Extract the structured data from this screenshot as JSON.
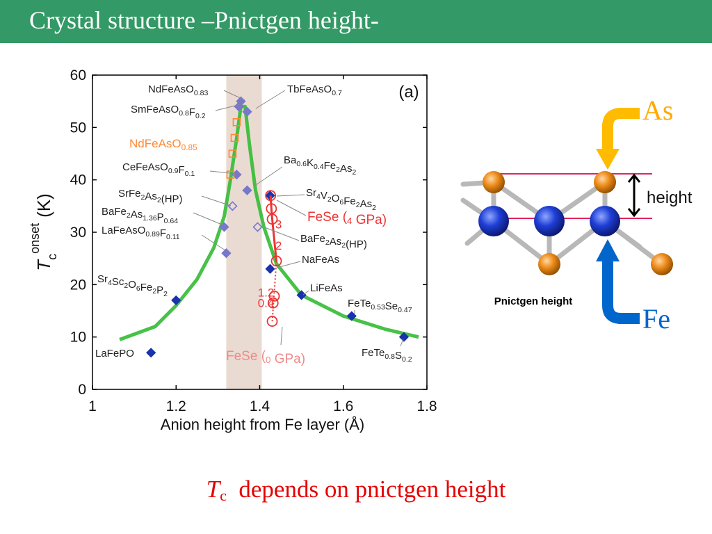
{
  "slide": {
    "title": "Crystal structure –Pnictgen height-",
    "caption_t": "T",
    "caption_sub": "c",
    "caption_rest": "depends on pnictgen height"
  },
  "diagram": {
    "label_as": "As",
    "label_fe": "Fe",
    "label_height": "height",
    "label_caption": "Pnictgen height"
  },
  "colors": {
    "header_green": "#339966",
    "caption_red": "#e60000",
    "curve_green": "#33bb33",
    "diamond_blue": "#1a33aa",
    "diamond_light": "#7777cc",
    "orange": "#ff8833",
    "fese_red": "#ee3333",
    "band": "#eadbd2",
    "as_arrow": "#ffbb00",
    "fe_arrow": "#0066cc"
  },
  "chart_data": {
    "type": "scatter",
    "panel_label": "(a)",
    "xlabel": "Anion height from Fe layer (Å)",
    "ylabel_main": "T",
    "ylabel_sub": "c",
    "ylabel_sup": "onset",
    "ylabel_unit": "(K)",
    "xlim": [
      1,
      1.8
    ],
    "ylim": [
      0,
      60
    ],
    "xticks": [
      1,
      1.2,
      1.4,
      1.6,
      1.8
    ],
    "xtick_labels": [
      "1",
      "1.2",
      "1.4",
      "1.6",
      "1.8"
    ],
    "yticks": [
      0,
      10,
      20,
      30,
      40,
      50,
      60
    ],
    "ytick_labels": [
      "0",
      "10",
      "20",
      "30",
      "40",
      "50",
      "60"
    ],
    "band": [
      1.32,
      1.405
    ],
    "curve": [
      [
        1.065,
        9.5
      ],
      [
        1.15,
        12
      ],
      [
        1.2,
        16
      ],
      [
        1.25,
        21
      ],
      [
        1.29,
        27
      ],
      [
        1.315,
        33
      ],
      [
        1.33,
        40
      ],
      [
        1.345,
        48
      ],
      [
        1.355,
        54
      ],
      [
        1.365,
        54
      ],
      [
        1.375,
        47
      ],
      [
        1.39,
        38
      ],
      [
        1.41,
        31
      ],
      [
        1.44,
        24
      ],
      [
        1.5,
        18
      ],
      [
        1.6,
        14
      ],
      [
        1.7,
        11.5
      ],
      [
        1.78,
        10
      ]
    ],
    "compounds": [
      {
        "name": "LaFePO",
        "x": 1.14,
        "y": 7,
        "style": "filled"
      },
      {
        "name": "Sr4Sc2O6Fe2P2",
        "x": 1.2,
        "y": 17,
        "style": "filled"
      },
      {
        "name": "LaFeAsO0.89F0.11",
        "x": 1.32,
        "y": 26,
        "style": "light"
      },
      {
        "name": "BaFe2As1.36P0.64",
        "x": 1.315,
        "y": 31,
        "style": "light"
      },
      {
        "name": "SrFe2As2 (HP)",
        "x": 1.335,
        "y": 35,
        "style": "open"
      },
      {
        "name": "CeFeAsO0.9F0.1",
        "x": 1.345,
        "y": 41,
        "style": "light"
      },
      {
        "name": "SmFeAsO0.8F0.2",
        "x": 1.35,
        "y": 54,
        "style": "light"
      },
      {
        "name": "NdFeAsO0.83",
        "x": 1.355,
        "y": 55,
        "style": "light"
      },
      {
        "name": "TbFeAsO0.7",
        "x": 1.37,
        "y": 53,
        "style": "light"
      },
      {
        "name": "Ba0.6K0.4Fe2As2",
        "x": 1.37,
        "y": 38,
        "style": "light"
      },
      {
        "name": "BaFe2As2 (HP)",
        "x": 1.395,
        "y": 31,
        "style": "open"
      },
      {
        "name": "Sr4V2O6Fe2As2",
        "x": 1.425,
        "y": 37,
        "style": "filled"
      },
      {
        "name": "NaFeAs",
        "x": 1.425,
        "y": 23,
        "style": "filled"
      },
      {
        "name": "LiFeAs",
        "x": 1.5,
        "y": 18,
        "style": "filled"
      },
      {
        "name": "FeTe0.53Se0.47",
        "x": 1.62,
        "y": 14,
        "style": "filled"
      },
      {
        "name": "FeTe0.8S0.2",
        "x": 1.745,
        "y": 10,
        "style": "filled"
      }
    ],
    "ndfeaso_085": {
      "name": "NdFeAsO0.85",
      "points": [
        [
          1.33,
          41
        ],
        [
          1.335,
          45
        ],
        [
          1.34,
          48
        ],
        [
          1.345,
          51
        ]
      ]
    },
    "fese": [
      [
        1.43,
        13
      ],
      [
        1.432,
        16.5
      ],
      [
        1.435,
        17.8
      ],
      [
        1.44,
        24.5
      ],
      [
        1.43,
        32.5
      ],
      [
        1.428,
        34.5
      ],
      [
        1.426,
        37
      ]
    ],
    "fese_pressure_labels": [
      {
        "text": "0.4",
        "x": 1.415,
        "y": 16.5
      },
      {
        "text": "1.2",
        "x": 1.415,
        "y": 18.5
      },
      {
        "text": "2",
        "x": 1.445,
        "y": 27.5
      },
      {
        "text": "3",
        "x": 1.445,
        "y": 31.5
      }
    ],
    "annotations": {
      "ndfeaso083": "NdFeAsO0.83",
      "smfeaso": "SmFeAsO0.8F0.2",
      "ndfeaso085": "NdFeAsO0.85",
      "cefeaso": "CeFeAsO0.9F0.1",
      "srfe2as2": "SrFe2As2(HP)",
      "bafe2as136": "BaFe2As1.36P0.64",
      "lafeaso": "LaFeAsO0.89F0.11",
      "sr4sc": "Sr4Sc2O6Fe2P2",
      "lafepo": "LaFePO",
      "tbfeaso": "TbFeAsO0.7",
      "bak": "Ba0.6K0.4Fe2As2",
      "sr4v": "Sr4V2O6Fe2As2",
      "fese4": "FeSe (4 GPa)",
      "bafe2as2hp": "BaFe2As2(HP)",
      "nafeas": "NaFeAs",
      "lifeas": "LiFeAs",
      "fete053": "FeTe0.53Se0.47",
      "fese0": "FeSe (0 GPa)",
      "fete08": "FeTe0.8S0.2"
    }
  }
}
